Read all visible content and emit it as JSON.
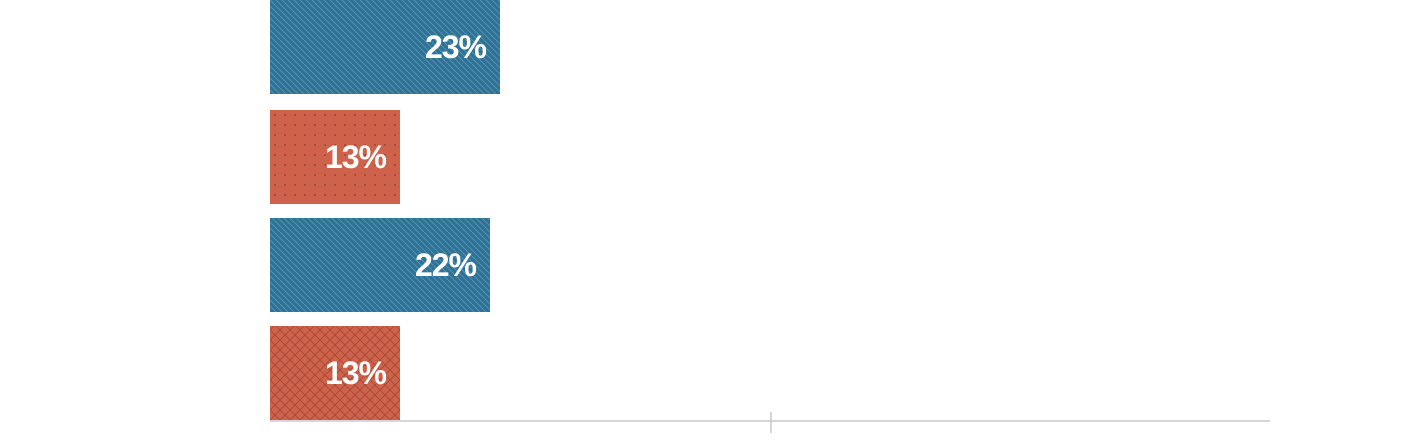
{
  "chart_data": {
    "type": "bar",
    "orientation": "horizontal",
    "values": [
      23,
      13,
      22,
      13
    ],
    "data_labels": [
      "23%",
      "13%",
      "22%",
      "13%"
    ],
    "bar_colors": [
      "#2e7296",
      "#cf624a",
      "#2e7296",
      "#cf624a"
    ],
    "bar_patterns": [
      "diagonal-hatch",
      "dots",
      "diagonal-hatch",
      "crosshatch"
    ],
    "xlim": [
      0,
      100
    ],
    "grid": false,
    "legend": "none"
  }
}
